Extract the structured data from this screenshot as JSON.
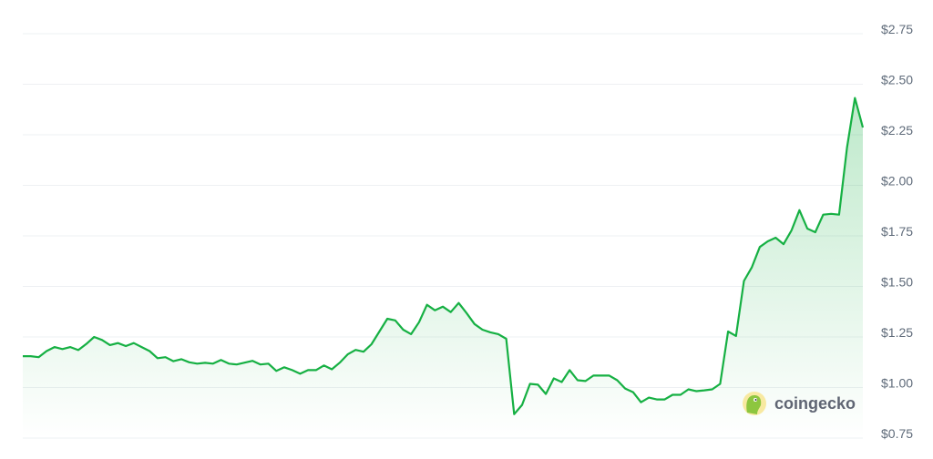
{
  "chart_data": {
    "type": "area",
    "title": "",
    "xlabel": "",
    "ylabel": "",
    "ylim": [
      0.75,
      2.75
    ],
    "yticks": [
      0.75,
      1.0,
      1.25,
      1.5,
      1.75,
      2.0,
      2.25,
      2.5,
      2.75
    ],
    "ytick_labels": [
      "$0.75",
      "$1.00",
      "$1.25",
      "$1.50",
      "$1.75",
      "$2.00",
      "$2.25",
      "$2.50",
      "$2.75"
    ],
    "grid": true,
    "y_axis_side": "right",
    "colors": {
      "line": "#16b043",
      "fill": "#16b043",
      "grid": "#eef0f3",
      "text": "#5f6b7a"
    },
    "values": [
      1.155,
      1.155,
      1.15,
      1.18,
      1.2,
      1.19,
      1.2,
      1.185,
      1.215,
      1.25,
      1.235,
      1.21,
      1.22,
      1.205,
      1.22,
      1.2,
      1.18,
      1.145,
      1.15,
      1.13,
      1.14,
      1.125,
      1.118,
      1.122,
      1.118,
      1.136,
      1.118,
      1.114,
      1.123,
      1.132,
      1.114,
      1.118,
      1.082,
      1.1,
      1.086,
      1.068,
      1.086,
      1.086,
      1.109,
      1.09,
      1.123,
      1.164,
      1.186,
      1.177,
      1.214,
      1.277,
      1.34,
      1.332,
      1.286,
      1.264,
      1.323,
      1.409,
      1.382,
      1.4,
      1.373,
      1.418,
      1.368,
      1.314,
      1.286,
      1.273,
      1.264,
      1.241,
      0.868,
      0.914,
      1.018,
      1.014,
      0.968,
      1.045,
      1.027,
      1.086,
      1.036,
      1.032,
      1.059,
      1.059,
      1.059,
      1.036,
      0.995,
      0.977,
      0.927,
      0.95,
      0.941,
      0.941,
      0.964,
      0.964,
      0.991,
      0.982,
      0.986,
      0.991,
      1.018,
      1.277,
      1.255,
      1.527,
      1.595,
      1.695,
      1.723,
      1.741,
      1.709,
      1.777,
      1.877,
      1.786,
      1.768,
      1.855,
      1.859,
      1.855,
      2.186,
      2.432,
      2.286
    ],
    "annotations": []
  },
  "watermark": {
    "text": "coingecko"
  }
}
